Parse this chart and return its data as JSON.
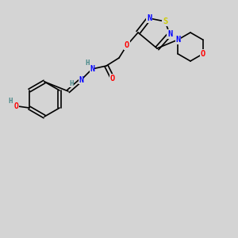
{
  "bg_color": "#d4d4d4",
  "bond_color": "#000000",
  "atom_colors": {
    "S": "#cccc00",
    "N": "#0000ff",
    "O": "#ff0000",
    "H": "#4a8a8a",
    "C": "#000000"
  },
  "font_size": 7.5,
  "bond_width": 1.2
}
